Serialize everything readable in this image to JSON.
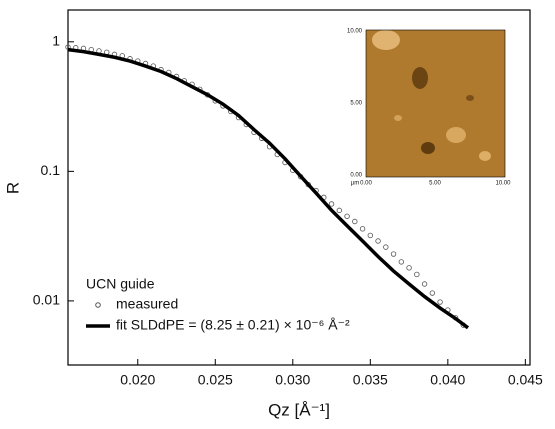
{
  "chart_data": {
    "type": "scatter",
    "xlabel": "Qz [Å⁻¹]",
    "ylabel": "R",
    "log_y": true,
    "xlim": [
      0.0155,
      0.0453
    ],
    "ylim": [
      0.0032,
      1.76
    ],
    "xticks": [
      {
        "value": 0.02,
        "label": "0.020"
      },
      {
        "value": 0.025,
        "label": "0.025"
      },
      {
        "value": 0.03,
        "label": "0.030"
      },
      {
        "value": 0.035,
        "label": "0.035"
      },
      {
        "value": 0.04,
        "label": "0.040"
      },
      {
        "value": 0.045,
        "label": "0.045"
      }
    ],
    "yticks": [
      0.01,
      0.1,
      1
    ],
    "legend_title": "UCN guide",
    "legend_position": "lower left",
    "series": [
      {
        "name": "measured",
        "style": "markers",
        "color": "#555555",
        "x": [
          0.0155,
          0.016,
          0.0165,
          0.017,
          0.0175,
          0.018,
          0.0185,
          0.019,
          0.0195,
          0.02,
          0.0205,
          0.021,
          0.0215,
          0.022,
          0.0225,
          0.023,
          0.0235,
          0.024,
          0.0245,
          0.025,
          0.0255,
          0.026,
          0.0265,
          0.027,
          0.0275,
          0.028,
          0.0285,
          0.029,
          0.0295,
          0.03,
          0.0305,
          0.031,
          0.0315,
          0.032,
          0.0325,
          0.033,
          0.0335,
          0.034,
          0.0345,
          0.035,
          0.0355,
          0.036,
          0.0365,
          0.037,
          0.0375,
          0.038,
          0.0385,
          0.039,
          0.0395,
          0.04,
          0.0405,
          0.041
        ],
        "values": [
          0.91,
          0.9,
          0.89,
          0.87,
          0.85,
          0.83,
          0.8,
          0.78,
          0.74,
          0.71,
          0.68,
          0.65,
          0.61,
          0.58,
          0.54,
          0.5,
          0.47,
          0.43,
          0.39,
          0.35,
          0.32,
          0.29,
          0.26,
          0.23,
          0.2,
          0.18,
          0.155,
          0.135,
          0.117,
          0.102,
          0.091,
          0.079,
          0.071,
          0.063,
          0.056,
          0.05,
          0.045,
          0.041,
          0.036,
          0.032,
          0.029,
          0.026,
          0.023,
          0.02,
          0.018,
          0.016,
          0.0135,
          0.0115,
          0.0098,
          0.0085,
          0.0074,
          0.0065
        ]
      },
      {
        "name": "fit SLDdPE = (8.25 ± 0.21) × 10⁻⁶ Å⁻²",
        "style": "line",
        "color": "#000000",
        "x": [
          0.0155,
          0.0165,
          0.0175,
          0.0185,
          0.0195,
          0.0205,
          0.0215,
          0.0225,
          0.0235,
          0.0245,
          0.0255,
          0.0265,
          0.0275,
          0.0285,
          0.0295,
          0.0305,
          0.0315,
          0.0325,
          0.0335,
          0.0345,
          0.0355,
          0.0365,
          0.0375,
          0.0385,
          0.0395,
          0.0405,
          0.0413
        ],
        "values": [
          0.87,
          0.84,
          0.8,
          0.76,
          0.71,
          0.65,
          0.59,
          0.52,
          0.45,
          0.39,
          0.33,
          0.27,
          0.21,
          0.165,
          0.125,
          0.092,
          0.068,
          0.05,
          0.038,
          0.029,
          0.022,
          0.017,
          0.0135,
          0.0108,
          0.0088,
          0.0073,
          0.0062
        ]
      }
    ],
    "inset": {
      "xtick_labels": [
        "0.00",
        "5.00",
        "10.00"
      ],
      "ytick_labels": [
        "10.00",
        "5.00",
        "0.00"
      ],
      "unit": "µm"
    }
  }
}
